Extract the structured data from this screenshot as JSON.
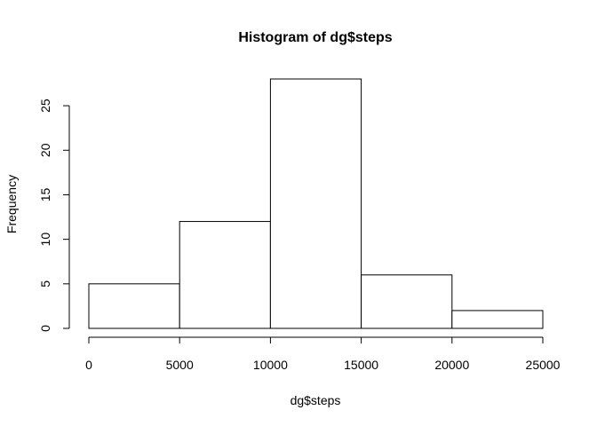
{
  "chart_data": {
    "type": "bar",
    "title": "Histogram of dg$steps",
    "xlabel": "dg$steps",
    "ylabel": "Frequency",
    "bins": [
      {
        "from": 0,
        "to": 5000,
        "count": 5
      },
      {
        "from": 5000,
        "to": 10000,
        "count": 12
      },
      {
        "from": 10000,
        "to": 15000,
        "count": 28
      },
      {
        "from": 15000,
        "to": 20000,
        "count": 6
      },
      {
        "from": 20000,
        "to": 25000,
        "count": 2
      }
    ],
    "xlim": [
      0,
      25000
    ],
    "ylim": [
      0,
      28
    ],
    "x_ticks": [
      0,
      5000,
      10000,
      15000,
      20000,
      25000
    ],
    "y_ticks": [
      0,
      5,
      10,
      15,
      20,
      25
    ],
    "grid": false,
    "colors": {
      "bar_fill": "#ffffff",
      "bar_stroke": "#000000"
    }
  }
}
